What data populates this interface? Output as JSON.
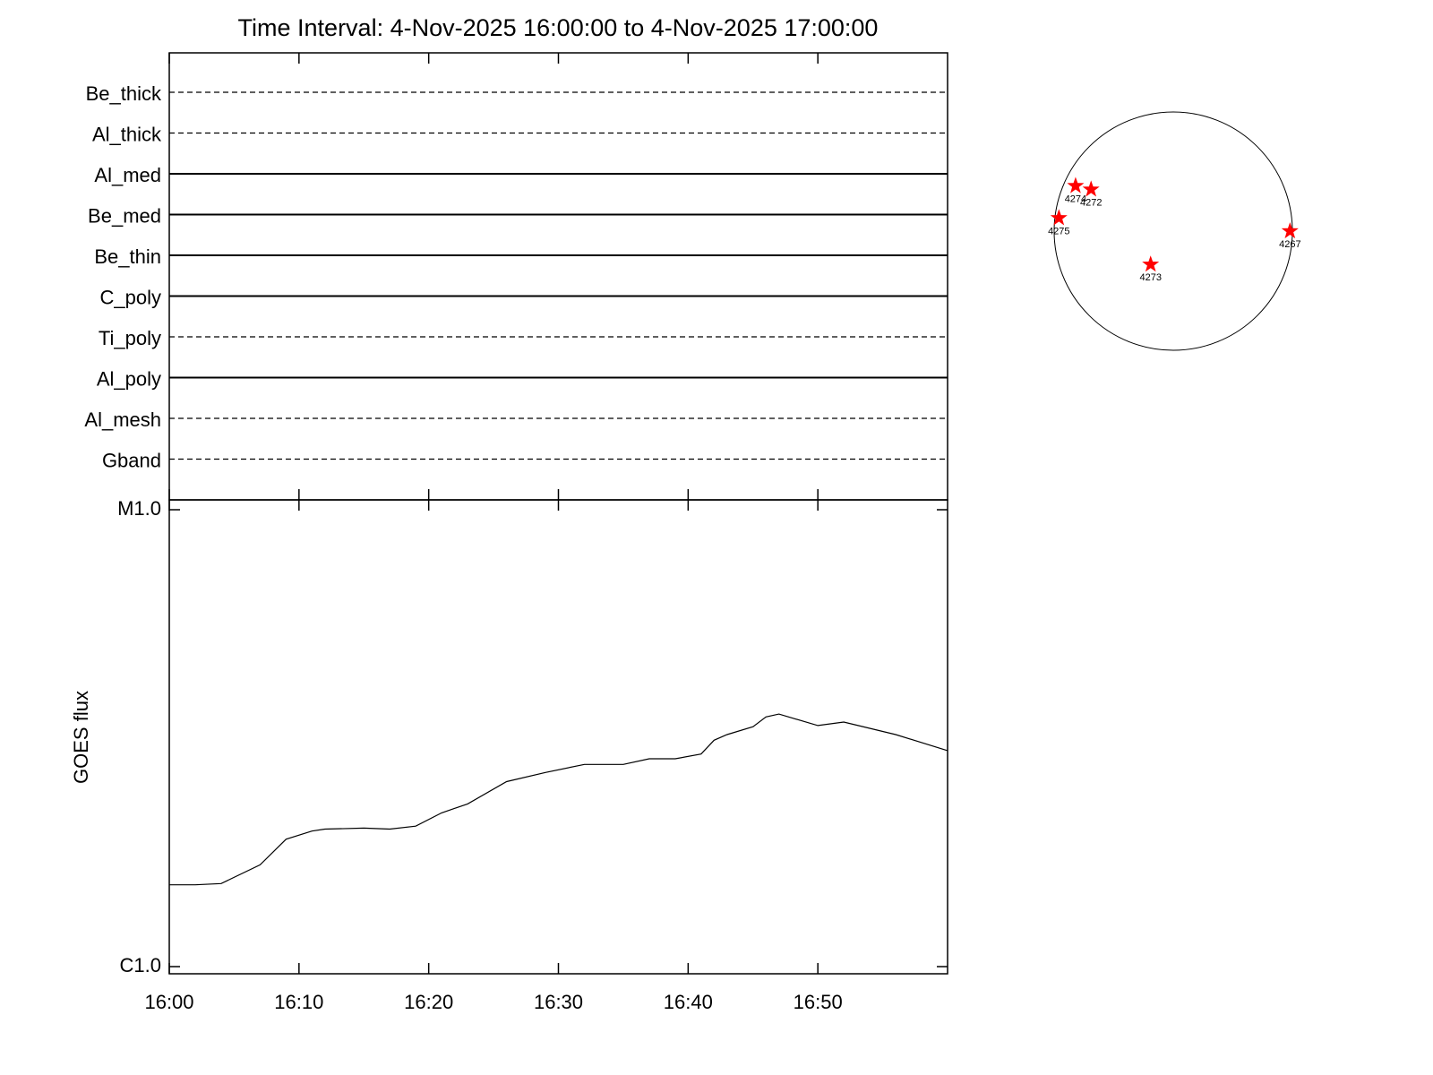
{
  "chart_data": {
    "type": "line",
    "title": "Time Interval:  4-Nov-2025 16:00:00 to  4-Nov-2025 17:00:00",
    "channels": [
      {
        "name": "Be_thick",
        "style": "dashed"
      },
      {
        "name": "Al_thick",
        "style": "dashed"
      },
      {
        "name": "Al_med",
        "style": "solid"
      },
      {
        "name": "Be_med",
        "style": "solid"
      },
      {
        "name": "Be_thin",
        "style": "solid"
      },
      {
        "name": "C_poly",
        "style": "solid"
      },
      {
        "name": "Ti_poly",
        "style": "dashed"
      },
      {
        "name": "Al_poly",
        "style": "solid"
      },
      {
        "name": "Al_mesh",
        "style": "dashed"
      },
      {
        "name": "Gband",
        "style": "dashed"
      }
    ],
    "y_label": "GOES flux",
    "log_y": true,
    "x": [
      0,
      2,
      4,
      7,
      9,
      11,
      12,
      15,
      17,
      19,
      21,
      23,
      26,
      29,
      32,
      35,
      37,
      39,
      41,
      42,
      43,
      45,
      46,
      47,
      50,
      52,
      56,
      60
    ],
    "series": [
      {
        "color": "#000000",
        "values": [
          1.51e-06,
          1.51e-06,
          1.52e-06,
          1.67e-06,
          1.9e-06,
          1.98e-06,
          2e-06,
          2.01e-06,
          2e-06,
          2.03e-06,
          2.17e-06,
          2.27e-06,
          2.54e-06,
          2.66e-06,
          2.77e-06,
          2.77e-06,
          2.85e-06,
          2.85e-06,
          2.92e-06,
          3.13e-06,
          3.22e-06,
          3.35e-06,
          3.52e-06,
          3.57e-06,
          3.37e-06,
          3.43e-06,
          3.22e-06,
          2.97e-06
        ]
      }
    ],
    "xlim": [
      0,
      60
    ],
    "xticks": [
      {
        "value": 0,
        "label": "16:00"
      },
      {
        "value": 10,
        "label": "16:10"
      },
      {
        "value": 20,
        "label": "16:20"
      },
      {
        "value": 30,
        "label": "16:30"
      },
      {
        "value": 40,
        "label": "16:40"
      },
      {
        "value": 50,
        "label": "16:50"
      }
    ],
    "ylim": [
      1e-06,
      1e-05
    ],
    "yticks": [
      {
        "value": 1e-06,
        "label": "C1.0"
      },
      {
        "value": 1e-05,
        "label": "M1.0"
      }
    ],
    "regions": {
      "marker_color": "#ff0000",
      "items": [
        {
          "label": "4274",
          "x": -0.82,
          "y": 0.38
        },
        {
          "label": "4272",
          "x": -0.69,
          "y": 0.35
        },
        {
          "label": "4275",
          "x": -0.96,
          "y": 0.11
        },
        {
          "label": "4267",
          "x": 0.98,
          "y": 0.0
        },
        {
          "label": "4273",
          "x": -0.19,
          "y": -0.28
        }
      ]
    }
  }
}
